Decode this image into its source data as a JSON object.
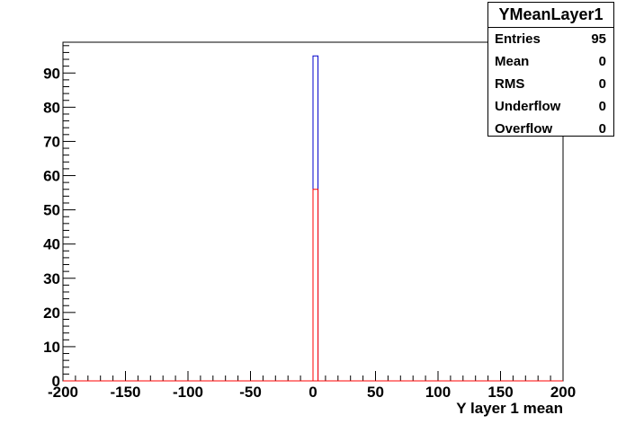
{
  "chart_data": {
    "type": "bar",
    "title": "",
    "xlabel": "Y layer 1 mean",
    "ylabel": "",
    "xlim": [
      -200,
      200
    ],
    "ylim": [
      0,
      99
    ],
    "x_ticks": [
      -200,
      -150,
      -100,
      -50,
      0,
      50,
      100,
      150,
      200
    ],
    "y_ticks": [
      0,
      10,
      20,
      30,
      40,
      50,
      60,
      70,
      80,
      90
    ],
    "bin_width": 4,
    "series": [
      {
        "color": "#0000cc",
        "bins": [
          {
            "x": [
              0,
              4
            ],
            "value": 95
          }
        ]
      },
      {
        "color": "#ff0000",
        "bins": [
          {
            "x": [
              0,
              4
            ],
            "value": 56
          }
        ]
      }
    ],
    "legend": "top-right"
  },
  "stats": {
    "title": "YMeanLayer1",
    "rows": [
      {
        "label": "Entries",
        "value": "95"
      },
      {
        "label": "Mean",
        "value": "0"
      },
      {
        "label": "RMS",
        "value": "0"
      },
      {
        "label": "Underflow",
        "value": "0"
      },
      {
        "label": "Overflow",
        "value": "0"
      }
    ]
  }
}
